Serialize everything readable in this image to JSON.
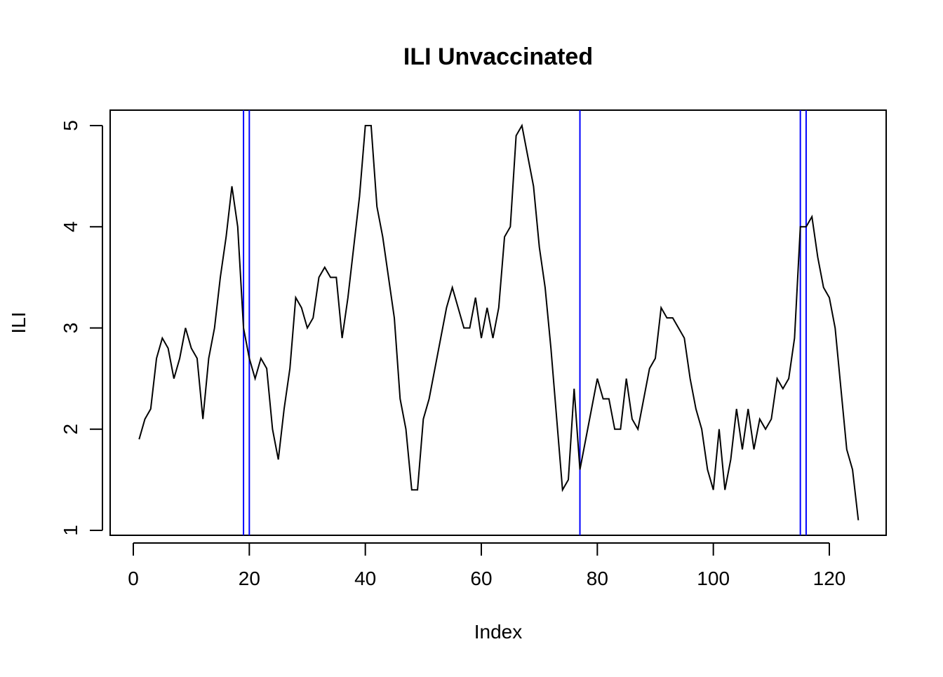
{
  "chart_data": {
    "type": "line",
    "title": "ILI Unvaccinated",
    "xlabel": "Index",
    "ylabel": "ILI",
    "xlim": [
      1,
      125
    ],
    "ylim": [
      1.1,
      5
    ],
    "x_ticks": [
      0,
      20,
      40,
      60,
      80,
      100,
      120
    ],
    "y_ticks": [
      1,
      2,
      3,
      4,
      5
    ],
    "grid": false,
    "legend": "none",
    "series": [
      {
        "color": "#000000",
        "x": [
          1,
          2,
          3,
          4,
          5,
          6,
          7,
          8,
          9,
          10,
          11,
          12,
          13,
          14,
          15,
          16,
          17,
          18,
          19,
          20,
          21,
          22,
          23,
          24,
          25,
          26,
          27,
          28,
          29,
          30,
          31,
          32,
          33,
          34,
          35,
          36,
          37,
          38,
          39,
          40,
          41,
          42,
          43,
          44,
          45,
          46,
          47,
          48,
          49,
          50,
          51,
          52,
          53,
          54,
          55,
          56,
          57,
          58,
          59,
          60,
          61,
          62,
          63,
          64,
          65,
          66,
          67,
          68,
          69,
          70,
          71,
          72,
          73,
          74,
          75,
          76,
          77,
          78,
          79,
          80,
          81,
          82,
          83,
          84,
          85,
          86,
          87,
          88,
          89,
          90,
          91,
          92,
          93,
          94,
          95,
          96,
          97,
          98,
          99,
          100,
          101,
          102,
          103,
          104,
          105,
          106,
          107,
          108,
          109,
          110,
          111,
          112,
          113,
          114,
          115,
          116,
          117,
          118,
          119,
          120,
          121,
          122,
          123,
          124,
          125
        ],
        "y": [
          1.9,
          2.1,
          2.2,
          2.7,
          2.9,
          2.8,
          2.5,
          2.7,
          3.0,
          2.8,
          2.7,
          2.1,
          2.7,
          3.0,
          3.5,
          3.9,
          4.4,
          4.0,
          3.0,
          2.7,
          2.5,
          2.7,
          2.6,
          2.0,
          1.7,
          2.2,
          2.6,
          3.3,
          3.2,
          3.0,
          3.1,
          3.5,
          3.6,
          3.5,
          3.5,
          2.9,
          3.3,
          3.8,
          4.3,
          5.0,
          5.0,
          4.2,
          3.9,
          3.5,
          3.1,
          2.3,
          2.0,
          1.4,
          1.4,
          2.1,
          2.3,
          2.6,
          2.9,
          3.2,
          3.4,
          3.2,
          3.0,
          3.0,
          3.3,
          2.9,
          3.2,
          2.9,
          3.2,
          3.9,
          4.0,
          4.9,
          5.0,
          4.7,
          4.4,
          3.8,
          3.4,
          2.8,
          2.1,
          1.4,
          1.5,
          2.4,
          1.6,
          1.9,
          2.2,
          2.5,
          2.3,
          2.3,
          2.0,
          2.0,
          2.5,
          2.1,
          2.0,
          2.3,
          2.6,
          2.7,
          3.2,
          3.1,
          3.1,
          3.0,
          2.9,
          2.5,
          2.2,
          2.0,
          1.6,
          1.4,
          2.0,
          1.4,
          1.7,
          2.2,
          1.8,
          2.2,
          1.8,
          2.1,
          2.0,
          2.1,
          2.5,
          2.4,
          2.5,
          2.9,
          4.0,
          4.0,
          4.1,
          3.7,
          3.4,
          3.3,
          3.0,
          2.4,
          1.8,
          1.6,
          1.1
        ]
      }
    ],
    "vertical_lines": {
      "color": "#0000ff",
      "x": [
        19,
        20,
        77,
        115,
        116
      ]
    }
  }
}
